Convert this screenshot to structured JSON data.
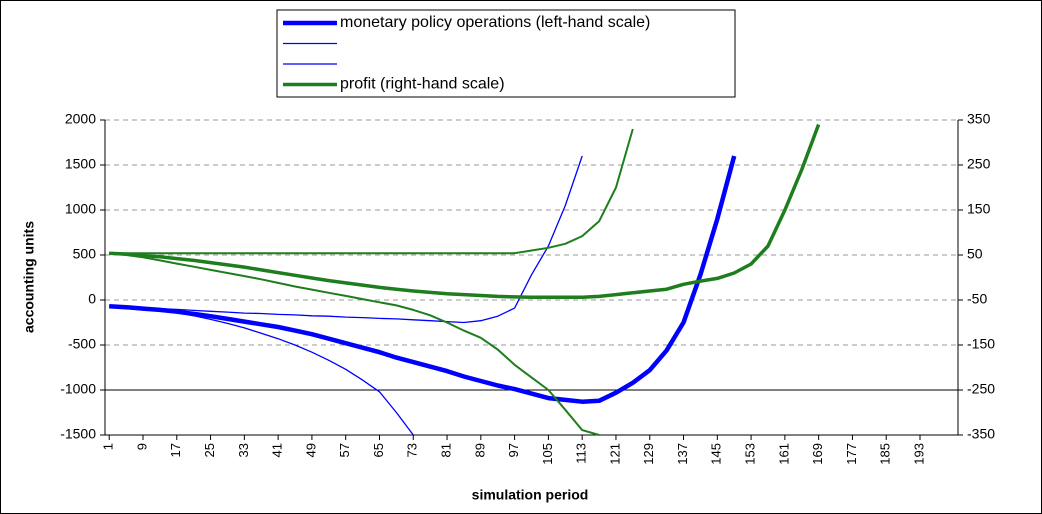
{
  "chart_data": {
    "type": "line",
    "ylabel": "accounting units",
    "xlabel": "simulation period",
    "x": [
      1,
      5,
      9,
      13,
      17,
      21,
      25,
      29,
      33,
      37,
      41,
      45,
      49,
      53,
      57,
      61,
      65,
      69,
      73,
      77,
      81,
      85,
      89,
      93,
      97,
      101,
      105,
      109,
      113,
      117,
      121,
      125,
      129,
      133,
      137,
      141,
      145,
      149,
      153,
      157,
      161,
      165,
      169,
      173,
      177,
      181,
      185,
      189,
      193,
      197
    ],
    "xlim": [
      0,
      202
    ],
    "xticks": [
      1,
      9,
      17,
      25,
      33,
      41,
      49,
      57,
      65,
      73,
      81,
      89,
      97,
      105,
      113,
      121,
      129,
      137,
      145,
      153,
      161,
      169,
      177,
      185,
      193
    ],
    "ylim": [
      -1500,
      2000
    ],
    "yticks": [
      -1500,
      -1000,
      -500,
      0,
      500,
      1000,
      1500,
      2000
    ],
    "y2lim": [
      -350,
      350
    ],
    "y2ticks": [
      -350,
      -250,
      -150,
      -50,
      50,
      150,
      250,
      350
    ],
    "x_axis_crosses": -1000,
    "grid": true,
    "legend": "top",
    "series": [
      {
        "name": "monetary policy operations (left-hand scale)",
        "color": "#0000ff",
        "width": 4.5,
        "in_legend": true,
        "values": [
          -70,
          -80,
          -95,
          -110,
          -130,
          -155,
          -180,
          -210,
          -240,
          -270,
          -300,
          -340,
          -380,
          -430,
          -480,
          -530,
          -580,
          -640,
          -690,
          -740,
          -790,
          -850,
          -900,
          -950,
          -990,
          -1040,
          -1090,
          -1110,
          -1130,
          -1120,
          -1030,
          -920,
          -780,
          -560,
          -250,
          280,
          900,
          1600,
          null,
          null,
          null,
          null,
          null,
          null,
          null,
          null,
          null,
          null,
          null,
          null
        ]
      },
      {
        "color": "#0000ff",
        "width": 1.3,
        "in_legend": true,
        "values": [
          -70,
          -75,
          -85,
          -95,
          -105,
          -115,
          -125,
          -135,
          -145,
          -150,
          -160,
          -165,
          -175,
          -180,
          -190,
          -195,
          -205,
          -210,
          -220,
          -230,
          -240,
          -250,
          -230,
          -180,
          -90,
          280,
          600,
          1050,
          1600,
          null,
          null,
          null,
          null,
          null,
          null,
          null,
          null,
          null,
          null,
          null,
          null,
          null,
          null,
          null,
          null,
          null,
          null,
          null,
          null,
          null
        ]
      },
      {
        "color": "#0000ff",
        "width": 1.3,
        "in_legend": true,
        "values": [
          -70,
          -80,
          -95,
          -115,
          -140,
          -175,
          -215,
          -260,
          -310,
          -370,
          -430,
          -500,
          -580,
          -670,
          -770,
          -890,
          -1020,
          -1250,
          -1500,
          null,
          null,
          null,
          null,
          null,
          null,
          null,
          null,
          null,
          null,
          null,
          null,
          null,
          null,
          null,
          null,
          null,
          null,
          null,
          null,
          null,
          null,
          null,
          null,
          null,
          null,
          null,
          null,
          null,
          null,
          null
        ]
      },
      {
        "name": "profit (right-hand scale)",
        "color": "#1e7e1e",
        "width": 3.5,
        "axis": "y2",
        "in_legend": true,
        "values": [
          54,
          52,
          49,
          46,
          42,
          38,
          33,
          28,
          23,
          17,
          11,
          5,
          -1,
          -7,
          -12,
          -17,
          -22,
          -26,
          -30,
          -33,
          -36,
          -38,
          -40,
          -42,
          -43,
          -44,
          -44,
          -44,
          -44,
          -42,
          -38,
          -34,
          -30,
          -26,
          -15,
          -8,
          -2,
          10,
          30,
          70,
          150,
          240,
          340,
          null,
          null,
          null,
          null,
          null,
          null,
          null
        ]
      },
      {
        "color": "#1e7e1e",
        "width": 2,
        "axis": "y2",
        "in_legend": false,
        "values": [
          54,
          54,
          54,
          54,
          54,
          54,
          54,
          54,
          54,
          54,
          54,
          54,
          54,
          54,
          54,
          54,
          54,
          54,
          54,
          54,
          54,
          54,
          54,
          54,
          54,
          60,
          66,
          75,
          92,
          125,
          200,
          330,
          null,
          null,
          null,
          null,
          null,
          null,
          null,
          null,
          null,
          null,
          null,
          null,
          null,
          null,
          null,
          null,
          null,
          null
        ]
      },
      {
        "color": "#1e7e1e",
        "width": 2,
        "axis": "y2",
        "in_legend": false,
        "values": [
          54,
          50,
          45,
          38,
          31,
          24,
          17,
          10,
          3,
          -4,
          -12,
          -20,
          -27,
          -34,
          -41,
          -48,
          -55,
          -62,
          -72,
          -84,
          -100,
          -118,
          -134,
          -160,
          -194,
          -222,
          -250,
          -294,
          -339,
          -350,
          null,
          null,
          null,
          null,
          null,
          null,
          null,
          null,
          null,
          null,
          null,
          null,
          null,
          null,
          null,
          null,
          null,
          null,
          null,
          null
        ]
      }
    ]
  }
}
